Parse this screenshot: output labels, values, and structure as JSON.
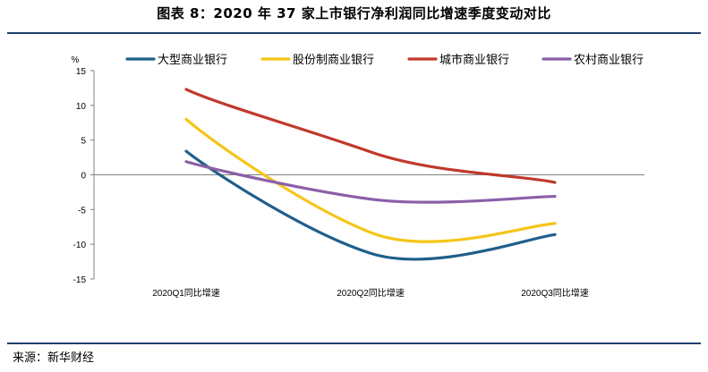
{
  "header": {
    "title": "图表 8：2020 年 37 家上市银行净利润同比增速季度变动对比"
  },
  "footer": {
    "source": "来源：新华财经"
  },
  "chart_data": {
    "type": "line",
    "title": "图表 8：2020 年 37 家上市银行净利润同比增速季度变动对比",
    "ylabel": "%",
    "xlabel": "",
    "ylim": [
      -15,
      15
    ],
    "yticks": [
      15,
      10,
      5,
      0,
      -5,
      -10,
      -15
    ],
    "categories": [
      "2020Q1同比增速",
      "2020Q2同比增速",
      "2020Q3同比增速"
    ],
    "series": [
      {
        "name": "大型商业银行",
        "color": "#1f5f8b",
        "values": [
          3.4,
          -11.3,
          -8.6
        ]
      },
      {
        "name": "股份制商业银行",
        "color": "#f5c518",
        "values": [
          8.0,
          -8.3,
          -7.0
        ]
      },
      {
        "name": "城市商业银行",
        "color": "#c0392b",
        "values": [
          12.3,
          3.3,
          -1.1
        ]
      },
      {
        "name": "农村商业银行",
        "color": "#8b5fa8",
        "values": [
          1.9,
          -3.5,
          -3.1
        ]
      }
    ],
    "legend_position": "top",
    "grid": false
  }
}
